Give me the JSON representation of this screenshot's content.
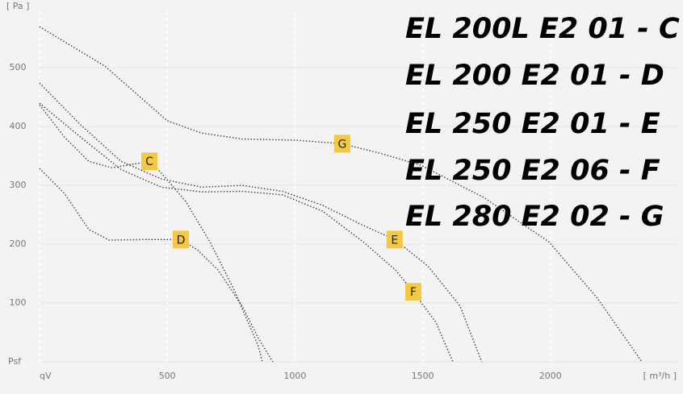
{
  "chart_data": {
    "type": "line",
    "y_unit": "[ Pa ]",
    "x_unit": "[ m³/h ]",
    "xlim": [
      0,
      2500
    ],
    "ylim": [
      0,
      610
    ],
    "xticks": [
      {
        "value": 0,
        "label": "qV"
      },
      500,
      1000,
      1500,
      2000
    ],
    "yticks": [
      {
        "value": 0,
        "label": "Psf"
      },
      100,
      200,
      300,
      400,
      500
    ],
    "grid": true,
    "series": [
      {
        "name": "EL 200L E2 01 - C",
        "label": "C",
        "color": "#333333",
        "x": [
          0,
          98,
          193,
          284,
          430,
          477,
          572,
          667,
          762,
          857,
          872
        ],
        "values": [
          437,
          382,
          341,
          330,
          341,
          321,
          273,
          204,
          122,
          26,
          0
        ]
      },
      {
        "name": "EL 200 E2 01 - D",
        "label": "D",
        "color": "#333333",
        "x": [
          0,
          98,
          193,
          272,
          414,
          553,
          619,
          699,
          793,
          857,
          913
        ],
        "values": [
          329,
          286,
          225,
          207,
          208,
          208,
          190,
          156,
          95,
          40,
          0
        ]
      },
      {
        "name": "EL 250 E2 01 - E",
        "label": "E",
        "color": "#333333",
        "x": [
          0,
          161,
          319,
          477,
          635,
          793,
          951,
          1109,
          1267,
          1390,
          1520,
          1646,
          1731
        ],
        "values": [
          474,
          403,
          341,
          311,
          297,
          300,
          290,
          266,
          232,
          208,
          163,
          95,
          0
        ]
      },
      {
        "name": "EL 250 E2 06 - F",
        "label": "F",
        "color": "#333333",
        "x": [
          0,
          161,
          319,
          477,
          635,
          793,
          951,
          1109,
          1267,
          1394,
          1463,
          1552,
          1618
        ],
        "values": [
          440,
          382,
          327,
          297,
          289,
          290,
          284,
          256,
          204,
          156,
          119,
          67,
          0
        ]
      },
      {
        "name": "EL 280 E2 02 - G",
        "label": "G",
        "color": "#333333",
        "x": [
          0,
          256,
          500,
          635,
          793,
          1002,
          1185,
          1331,
          1495,
          1741,
          1994,
          2184,
          2358
        ],
        "values": [
          570,
          503,
          410,
          389,
          379,
          377,
          371,
          355,
          334,
          279,
          204,
          108,
          0
        ]
      }
    ]
  }
}
